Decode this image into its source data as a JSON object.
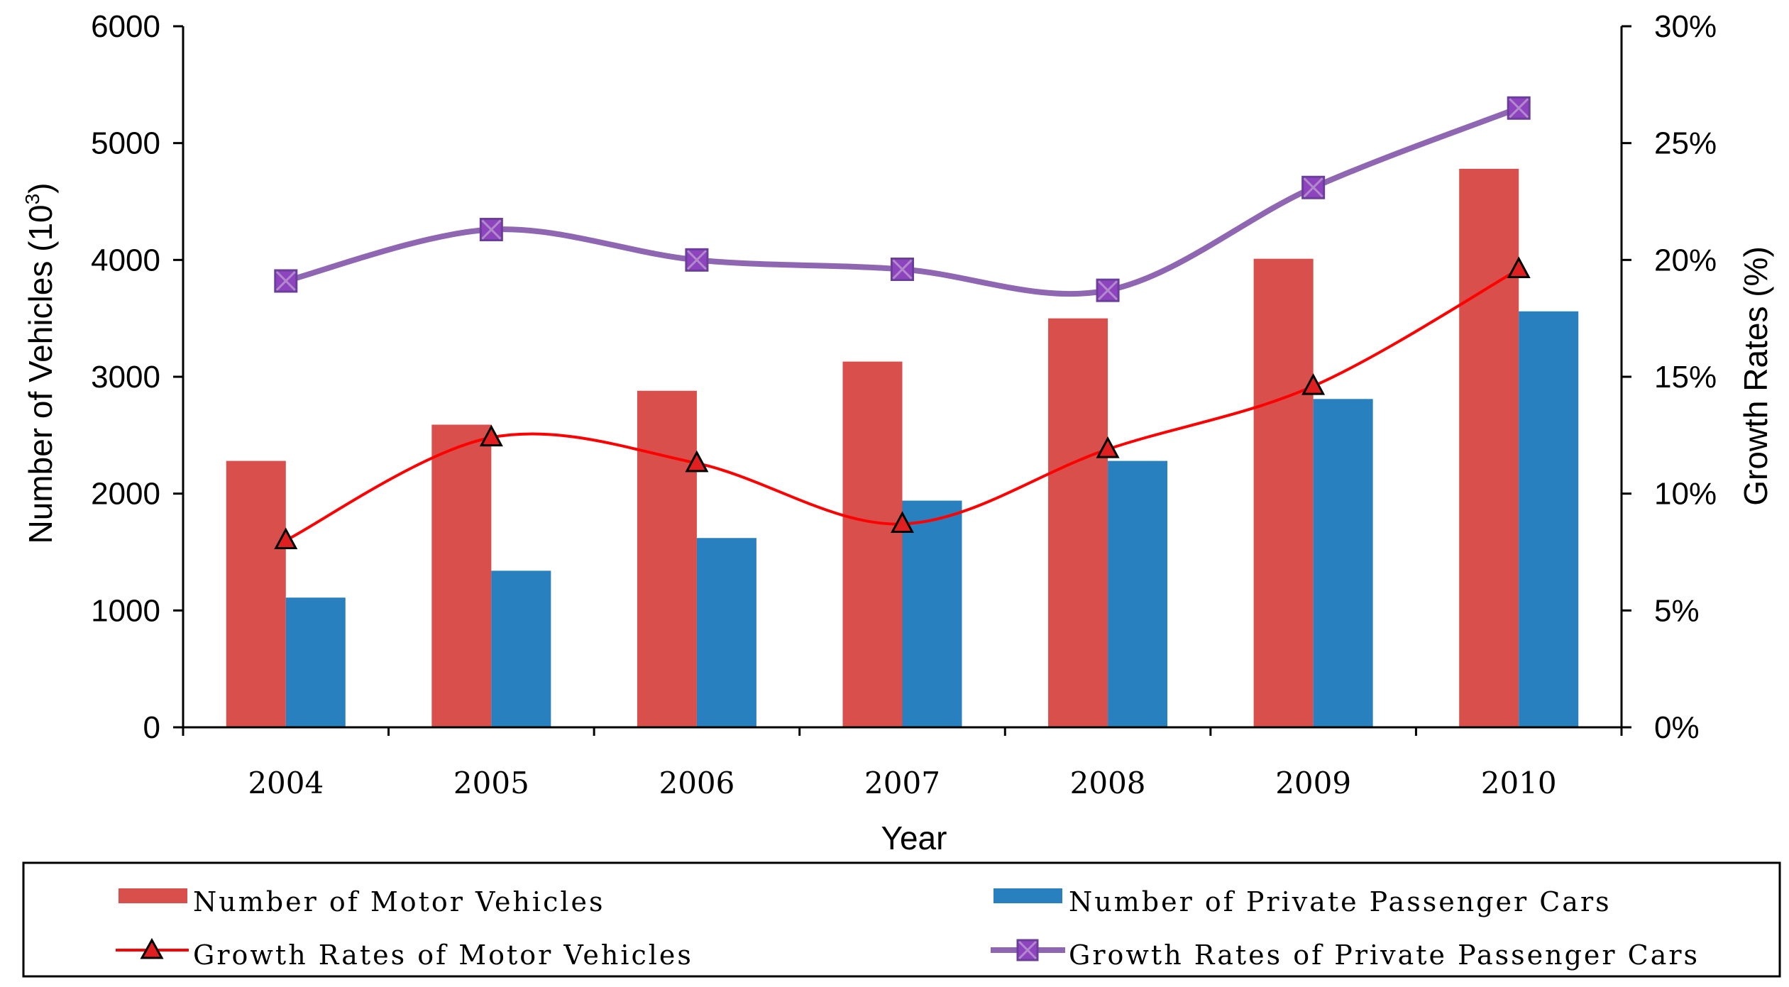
{
  "chart_data": {
    "type": "bar",
    "categories": [
      "2004",
      "2005",
      "2006",
      "2007",
      "2008",
      "2009",
      "2010"
    ],
    "xlabel": "Year",
    "ylabel_left_main": "Number of Vehicles (10",
    "ylabel_left_sup": "3",
    "ylabel_left_end": ")",
    "ylabel_right": "Growth Rates (%)",
    "ylim_left": [
      0,
      6000
    ],
    "ylim_right": [
      0,
      30
    ],
    "left_ticks": [
      "0",
      "1000",
      "2000",
      "3000",
      "4000",
      "5000",
      "6000"
    ],
    "right_ticks": [
      "0%",
      "5%",
      "10%",
      "15%",
      "20%",
      "25%",
      "30%"
    ],
    "legend_position": "bottom",
    "series": [
      {
        "name": "Number of Motor Vehicles",
        "kind": "bar",
        "axis": "left",
        "color": "#D94F4B",
        "values": [
          2280,
          2590,
          2880,
          3130,
          3500,
          4010,
          4780
        ]
      },
      {
        "name": "Number of Private Passenger Cars",
        "kind": "bar",
        "axis": "left",
        "color": "#2980BF",
        "values": [
          1110,
          1340,
          1620,
          1940,
          2280,
          2810,
          3560
        ]
      },
      {
        "name": "Growth Rates of Motor Vehicles",
        "kind": "line",
        "axis": "right",
        "color": "#FF0000",
        "marker": "triangle",
        "values": [
          8.0,
          12.4,
          11.3,
          8.7,
          11.9,
          14.6,
          19.6
        ]
      },
      {
        "name": "Growth Rates of Private Passenger Cars",
        "kind": "line",
        "axis": "right",
        "color": "#8E66B2",
        "marker": "square-x",
        "values": [
          19.1,
          21.3,
          20.0,
          19.6,
          18.7,
          23.1,
          26.5
        ]
      }
    ]
  }
}
